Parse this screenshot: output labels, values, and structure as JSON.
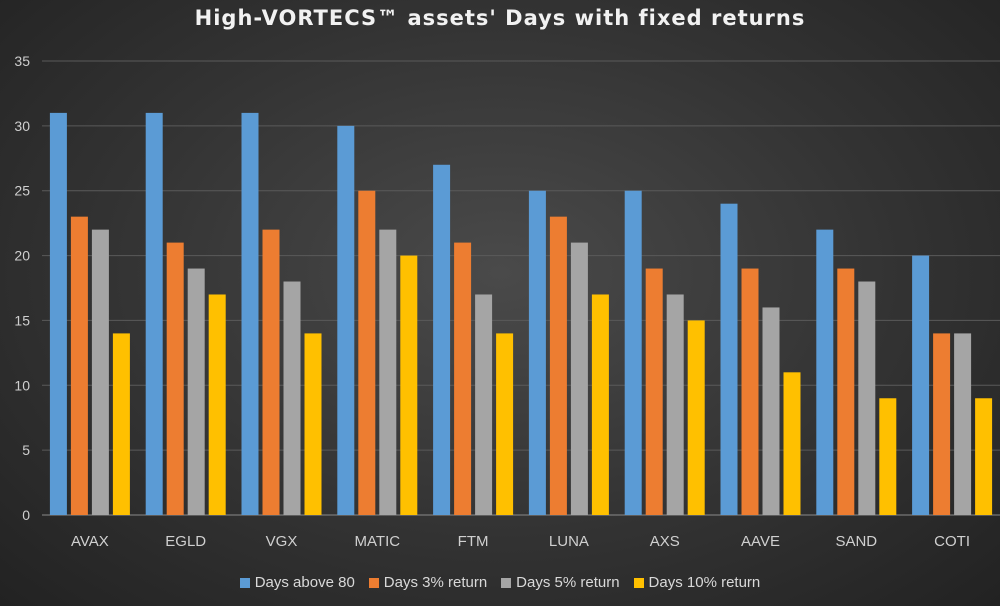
{
  "chart_data": {
    "type": "bar",
    "title": "High-VORTECS™ assets' Days with fixed returns",
    "categories": [
      "AVAX",
      "EGLD",
      "VGX",
      "MATIC",
      "FTM",
      "LUNA",
      "AXS",
      "AAVE",
      "SAND",
      "COTI"
    ],
    "series": [
      {
        "name": "Days above 80",
        "color": "#5b9bd5",
        "values": [
          31,
          31,
          31,
          30,
          27,
          25,
          25,
          24,
          22,
          20
        ]
      },
      {
        "name": "Days 3% return",
        "color": "#ed7d31",
        "values": [
          23,
          21,
          22,
          25,
          21,
          23,
          19,
          19,
          19,
          14
        ]
      },
      {
        "name": "Days 5% return",
        "color": "#a5a5a5",
        "values": [
          22,
          19,
          18,
          22,
          17,
          21,
          17,
          16,
          18,
          14
        ]
      },
      {
        "name": "Days 10% return",
        "color": "#ffc000",
        "values": [
          14,
          17,
          14,
          20,
          14,
          17,
          15,
          11,
          9,
          9
        ]
      }
    ],
    "yticks": [
      "0",
      "5",
      "10",
      "15",
      "20",
      "25",
      "30",
      "35"
    ],
    "ylim": [
      0,
      35
    ],
    "grid": true,
    "legend": "bottom"
  }
}
